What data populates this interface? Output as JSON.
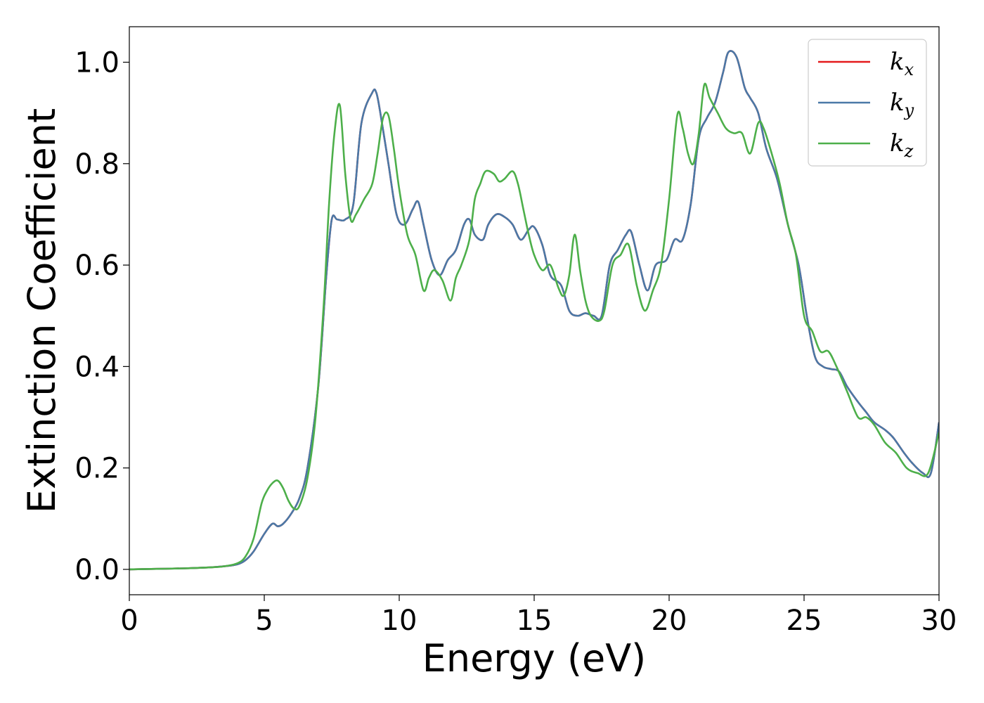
{
  "chart_data": {
    "type": "line",
    "title": "",
    "xlabel": "Energy (eV)",
    "ylabel": "Extinction Coefficient",
    "xlim": [
      0,
      30
    ],
    "ylim": [
      -0.05,
      1.07
    ],
    "xticks": [
      0,
      5,
      10,
      15,
      20,
      25,
      30
    ],
    "yticks": [
      0.0,
      0.2,
      0.4,
      0.6,
      0.8,
      1.0
    ],
    "xtick_labels": [
      "0",
      "5",
      "10",
      "15",
      "20",
      "25",
      "30"
    ],
    "ytick_labels": [
      "0.0",
      "0.2",
      "0.4",
      "0.6",
      "0.8",
      "1.0"
    ],
    "grid": false,
    "legend_position": "top-right",
    "series": [
      {
        "name": "k_x",
        "legend_base": "k",
        "legend_sub": "x",
        "color": "#e41a1c",
        "x": [
          0,
          1,
          2,
          3,
          3.5,
          4,
          4.3,
          4.6,
          5.0,
          5.3,
          5.5,
          5.7,
          6.0,
          6.3,
          6.6,
          7.0,
          7.3,
          7.5,
          7.7,
          8.0,
          8.3,
          8.6,
          9.0,
          9.15,
          9.3,
          9.6,
          9.9,
          10.2,
          10.5,
          10.7,
          10.9,
          11.2,
          11.5,
          11.8,
          12.1,
          12.4,
          12.6,
          12.8,
          13.1,
          13.3,
          13.6,
          13.9,
          14.2,
          14.5,
          14.8,
          15.0,
          15.3,
          15.6,
          16.0,
          16.3,
          16.6,
          16.9,
          17.2,
          17.5,
          17.8,
          18.1,
          18.4,
          18.6,
          18.9,
          19.2,
          19.5,
          19.9,
          20.2,
          20.5,
          20.8,
          21.1,
          21.4,
          21.7,
          22.0,
          22.2,
          22.5,
          22.8,
          23.0,
          23.3,
          23.6,
          24.0,
          24.4,
          24.8,
          25.1,
          25.4,
          25.7,
          26.0,
          26.3,
          26.6,
          27.0,
          27.3,
          27.6,
          28.0,
          28.3,
          28.7,
          29.0,
          29.4,
          29.7,
          30.0
        ],
        "y": [
          0.0,
          0.001,
          0.002,
          0.004,
          0.006,
          0.01,
          0.018,
          0.035,
          0.07,
          0.09,
          0.085,
          0.09,
          0.11,
          0.14,
          0.2,
          0.36,
          0.58,
          0.69,
          0.69,
          0.69,
          0.72,
          0.88,
          0.94,
          0.94,
          0.9,
          0.8,
          0.7,
          0.68,
          0.71,
          0.725,
          0.68,
          0.61,
          0.58,
          0.61,
          0.63,
          0.68,
          0.69,
          0.66,
          0.65,
          0.68,
          0.7,
          0.695,
          0.68,
          0.65,
          0.67,
          0.675,
          0.64,
          0.58,
          0.56,
          0.51,
          0.5,
          0.505,
          0.5,
          0.5,
          0.6,
          0.63,
          0.66,
          0.665,
          0.6,
          0.55,
          0.6,
          0.61,
          0.65,
          0.65,
          0.72,
          0.85,
          0.89,
          0.92,
          0.98,
          1.02,
          1.01,
          0.95,
          0.93,
          0.9,
          0.83,
          0.77,
          0.68,
          0.6,
          0.5,
          0.42,
          0.4,
          0.395,
          0.39,
          0.36,
          0.33,
          0.31,
          0.29,
          0.275,
          0.26,
          0.23,
          0.21,
          0.19,
          0.19,
          0.29
        ]
      },
      {
        "name": "k_y",
        "legend_base": "k",
        "legend_sub": "y",
        "color": "#4a79a7",
        "x": [
          0,
          1,
          2,
          3,
          3.5,
          4,
          4.3,
          4.6,
          5.0,
          5.3,
          5.5,
          5.7,
          6.0,
          6.3,
          6.6,
          7.0,
          7.3,
          7.5,
          7.7,
          8.0,
          8.3,
          8.6,
          9.0,
          9.15,
          9.3,
          9.6,
          9.9,
          10.2,
          10.5,
          10.7,
          10.9,
          11.2,
          11.5,
          11.8,
          12.1,
          12.4,
          12.6,
          12.8,
          13.1,
          13.3,
          13.6,
          13.9,
          14.2,
          14.5,
          14.8,
          15.0,
          15.3,
          15.6,
          16.0,
          16.3,
          16.6,
          16.9,
          17.2,
          17.5,
          17.8,
          18.1,
          18.4,
          18.6,
          18.9,
          19.2,
          19.5,
          19.9,
          20.2,
          20.5,
          20.8,
          21.1,
          21.4,
          21.7,
          22.0,
          22.2,
          22.5,
          22.8,
          23.0,
          23.3,
          23.6,
          24.0,
          24.4,
          24.8,
          25.1,
          25.4,
          25.7,
          26.0,
          26.3,
          26.6,
          27.0,
          27.3,
          27.6,
          28.0,
          28.3,
          28.7,
          29.0,
          29.4,
          29.7,
          30.0
        ],
        "y": [
          0.0,
          0.001,
          0.002,
          0.004,
          0.006,
          0.01,
          0.018,
          0.035,
          0.07,
          0.09,
          0.085,
          0.09,
          0.11,
          0.14,
          0.2,
          0.36,
          0.58,
          0.69,
          0.69,
          0.69,
          0.72,
          0.88,
          0.94,
          0.94,
          0.9,
          0.8,
          0.7,
          0.68,
          0.71,
          0.725,
          0.68,
          0.61,
          0.58,
          0.61,
          0.63,
          0.68,
          0.69,
          0.66,
          0.65,
          0.68,
          0.7,
          0.695,
          0.68,
          0.65,
          0.67,
          0.675,
          0.64,
          0.58,
          0.56,
          0.51,
          0.5,
          0.505,
          0.5,
          0.5,
          0.6,
          0.63,
          0.66,
          0.665,
          0.6,
          0.55,
          0.6,
          0.61,
          0.65,
          0.65,
          0.72,
          0.85,
          0.89,
          0.92,
          0.98,
          1.02,
          1.01,
          0.95,
          0.93,
          0.9,
          0.83,
          0.77,
          0.68,
          0.6,
          0.5,
          0.42,
          0.4,
          0.395,
          0.39,
          0.36,
          0.33,
          0.31,
          0.29,
          0.275,
          0.26,
          0.23,
          0.21,
          0.19,
          0.19,
          0.29
        ]
      },
      {
        "name": "k_z",
        "legend_base": "k",
        "legend_sub": "z",
        "color": "#4daf4a",
        "x": [
          0,
          1,
          2,
          3,
          3.5,
          4,
          4.3,
          4.6,
          4.9,
          5.1,
          5.3,
          5.5,
          5.7,
          5.9,
          6.1,
          6.3,
          6.6,
          6.9,
          7.2,
          7.4,
          7.6,
          7.8,
          8.0,
          8.2,
          8.4,
          8.7,
          9.0,
          9.2,
          9.4,
          9.6,
          9.8,
          10.0,
          10.3,
          10.6,
          10.9,
          11.1,
          11.3,
          11.6,
          11.9,
          12.1,
          12.3,
          12.6,
          12.8,
          13.0,
          13.2,
          13.5,
          13.7,
          13.9,
          14.2,
          14.4,
          14.6,
          14.8,
          15.0,
          15.3,
          15.6,
          15.9,
          16.1,
          16.3,
          16.5,
          16.7,
          16.9,
          17.1,
          17.4,
          17.6,
          17.9,
          18.2,
          18.5,
          18.8,
          19.1,
          19.4,
          19.7,
          20.0,
          20.3,
          20.5,
          20.7,
          20.9,
          21.1,
          21.3,
          21.5,
          21.8,
          22.1,
          22.4,
          22.7,
          23.0,
          23.3,
          23.5,
          23.8,
          24.1,
          24.4,
          24.7,
          25.0,
          25.3,
          25.6,
          25.9,
          26.2,
          26.6,
          27.0,
          27.3,
          27.6,
          28.0,
          28.4,
          28.8,
          29.2,
          29.6,
          30.0
        ],
        "y": [
          0.0,
          0.001,
          0.002,
          0.004,
          0.006,
          0.012,
          0.025,
          0.06,
          0.13,
          0.155,
          0.17,
          0.175,
          0.16,
          0.135,
          0.12,
          0.125,
          0.18,
          0.3,
          0.52,
          0.72,
          0.86,
          0.915,
          0.78,
          0.69,
          0.7,
          0.73,
          0.76,
          0.82,
          0.89,
          0.895,
          0.83,
          0.75,
          0.66,
          0.62,
          0.55,
          0.575,
          0.59,
          0.57,
          0.53,
          0.575,
          0.6,
          0.65,
          0.73,
          0.76,
          0.785,
          0.78,
          0.765,
          0.77,
          0.785,
          0.76,
          0.71,
          0.66,
          0.62,
          0.59,
          0.6,
          0.555,
          0.54,
          0.58,
          0.66,
          0.59,
          0.53,
          0.5,
          0.49,
          0.51,
          0.6,
          0.62,
          0.64,
          0.56,
          0.51,
          0.55,
          0.6,
          0.73,
          0.895,
          0.87,
          0.82,
          0.8,
          0.86,
          0.955,
          0.93,
          0.9,
          0.87,
          0.86,
          0.86,
          0.82,
          0.88,
          0.87,
          0.82,
          0.76,
          0.68,
          0.62,
          0.5,
          0.47,
          0.43,
          0.43,
          0.4,
          0.35,
          0.3,
          0.3,
          0.285,
          0.25,
          0.23,
          0.2,
          0.19,
          0.19,
          0.27
        ]
      }
    ]
  }
}
